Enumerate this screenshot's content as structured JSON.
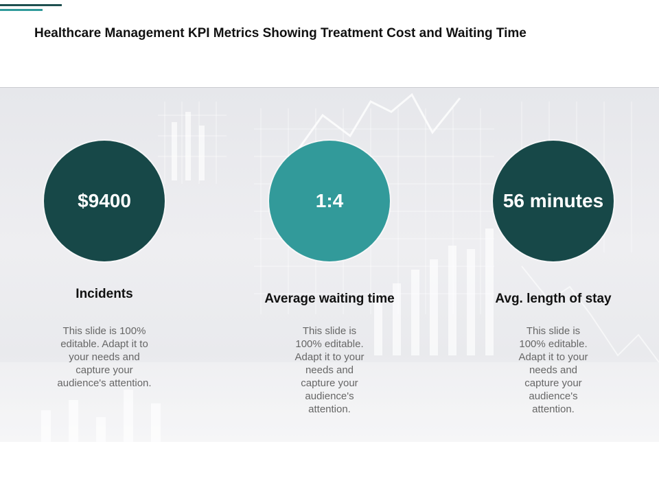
{
  "slide": {
    "title": "Healthcare Management KPI Metrics Showing Treatment Cost and Waiting Time"
  },
  "colors": {
    "dark_teal": "#174848",
    "teal": "#329a9a",
    "accent_dark": "#1e4f4f",
    "accent_light": "#2f9a9a"
  },
  "kpis": [
    {
      "value": "$9400",
      "label": "Incidents",
      "description": "This slide is 100% editable. Adapt it to your needs and capture your audience's attention.",
      "color": "#174848"
    },
    {
      "value": "1:4",
      "label": "Average waiting  time",
      "description": "This slide is 100% editable. Adapt it to your needs and capture your audience's attention.",
      "color": "#329a9a"
    },
    {
      "value": "56 minutes",
      "label": "Avg. length of stay",
      "description": "This slide is 100% editable. Adapt it to your needs and capture your audience's attention.",
      "color": "#174848"
    }
  ]
}
